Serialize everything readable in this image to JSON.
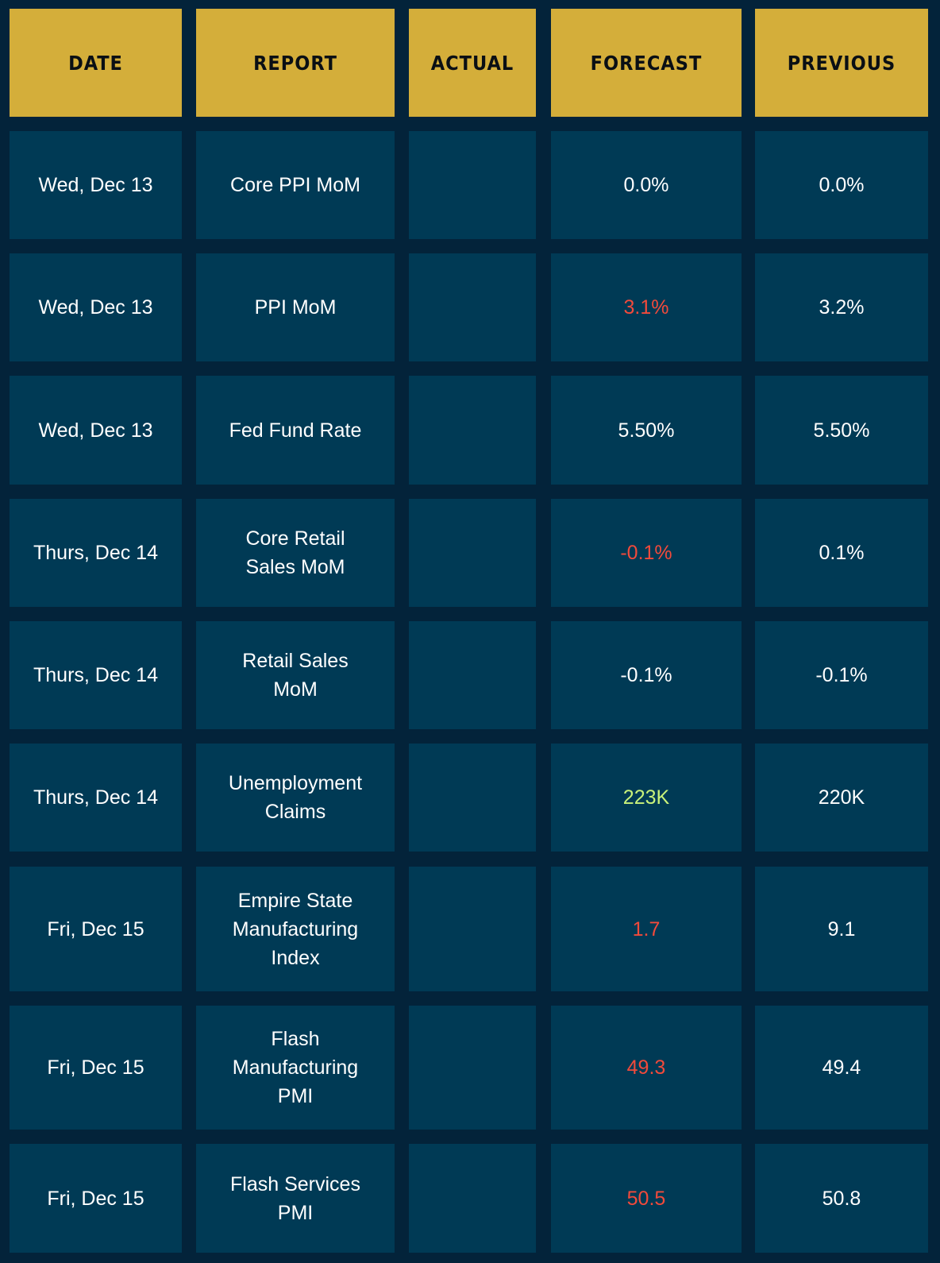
{
  "headers": {
    "date": "DATE",
    "report": "REPORT",
    "actual": "ACTUAL",
    "forecast": "FORECAST",
    "previous": "PREVIOUS"
  },
  "colors": {
    "background": "#03233a",
    "header_fill": "#d4ae3a",
    "cell_fill": "#003a55",
    "negative_text": "#f24a3b",
    "positive_text": "#c9f27a"
  },
  "rows": [
    {
      "date": "Wed, Dec 13",
      "report": "Core PPI MoM",
      "actual": "",
      "forecast": "0.0%",
      "previous": "0.0%",
      "forecast_tone": "neutral"
    },
    {
      "date": "Wed, Dec 13",
      "report": "PPI MoM",
      "actual": "",
      "forecast": "3.1%",
      "previous": "3.2%",
      "forecast_tone": "negative"
    },
    {
      "date": "Wed, Dec 13",
      "report": "Fed Fund Rate",
      "actual": "",
      "forecast": "5.50%",
      "previous": "5.50%",
      "forecast_tone": "neutral"
    },
    {
      "date": "Thurs, Dec 14",
      "report": "Core Retail Sales MoM",
      "actual": "",
      "forecast": "-0.1%",
      "previous": "0.1%",
      "forecast_tone": "negative"
    },
    {
      "date": "Thurs, Dec 14",
      "report": "Retail Sales MoM",
      "actual": "",
      "forecast": "-0.1%",
      "previous": "-0.1%",
      "forecast_tone": "neutral"
    },
    {
      "date": "Thurs, Dec 14",
      "report": "Unemployment Claims",
      "actual": "",
      "forecast": "223K",
      "previous": "220K",
      "forecast_tone": "positive"
    },
    {
      "date": "Fri, Dec 15",
      "report": "Empire State Manufacturing Index",
      "actual": "",
      "forecast": "1.7",
      "previous": "9.1",
      "forecast_tone": "negative"
    },
    {
      "date": "Fri, Dec 15",
      "report": "Flash Manufacturing PMI",
      "actual": "",
      "forecast": "49.3",
      "previous": "49.4",
      "forecast_tone": "negative"
    },
    {
      "date": "Fri, Dec 15",
      "report": "Flash Services PMI",
      "actual": "",
      "forecast": "50.5",
      "previous": "50.8",
      "forecast_tone": "negative"
    }
  ]
}
